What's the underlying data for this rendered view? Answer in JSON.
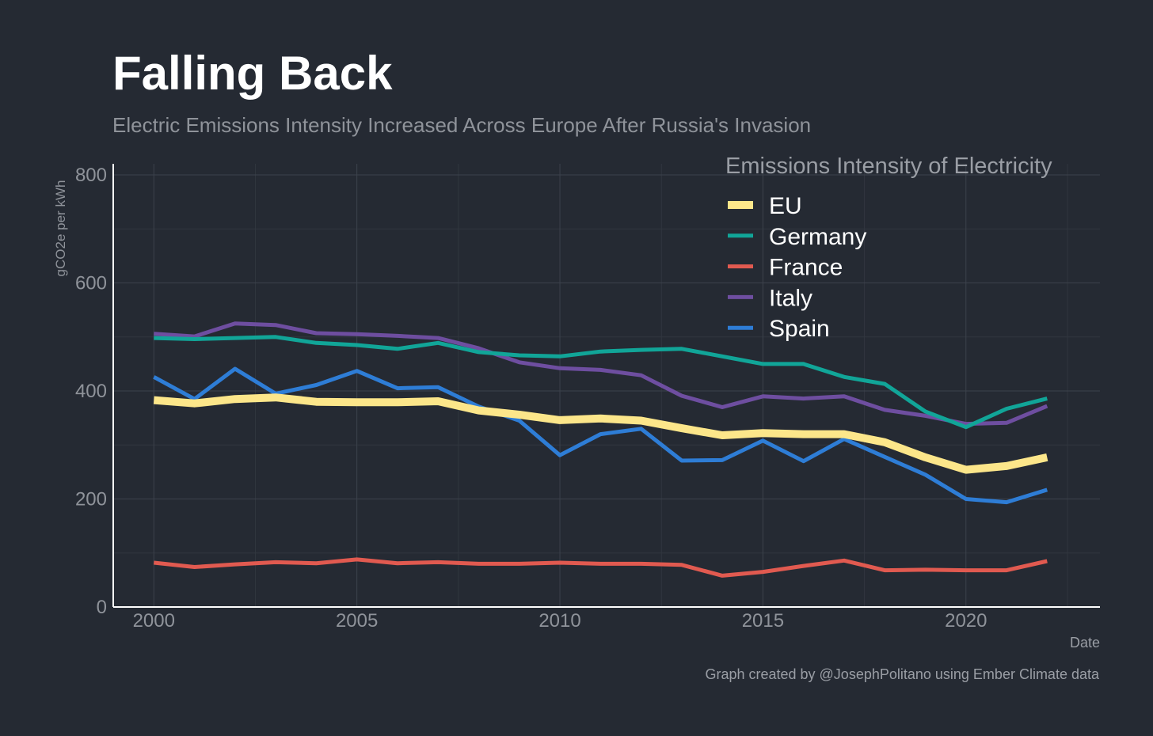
{
  "header": {
    "title": "Falling Back",
    "subtitle": "Electric Emissions Intensity Increased Across Europe After Russia's Invasion"
  },
  "caption": "Graph created by @JosephPolitano using Ember Climate data",
  "chart_data": {
    "type": "line",
    "title": "Falling Back",
    "subtitle": "Electric Emissions Intensity Increased Across Europe After Russia's Invasion",
    "xlabel": "Date",
    "ylabel": "gCO2e per kWh",
    "legend_title": "Emissions Intensity of Electricity",
    "legend_position": "top-right",
    "grid": true,
    "xlim": [
      1999,
      2023.3
    ],
    "ylim": [
      0,
      800
    ],
    "xticks": [
      2000,
      2005,
      2010,
      2015,
      2020
    ],
    "yticks": [
      0,
      200,
      400,
      600,
      800
    ],
    "x": [
      2000,
      2001,
      2002,
      2003,
      2004,
      2005,
      2006,
      2007,
      2008,
      2009,
      2010,
      2011,
      2012,
      2013,
      2014,
      2015,
      2016,
      2017,
      2018,
      2019,
      2020,
      2021,
      2022
    ],
    "series": [
      {
        "name": "EU",
        "color": "#fce68a",
        "values": [
          383,
          377,
          385,
          388,
          380,
          379,
          379,
          381,
          364,
          356,
          346,
          349,
          345,
          331,
          318,
          322,
          320,
          320,
          305,
          277,
          254,
          261,
          277
        ]
      },
      {
        "name": "Germany",
        "color": "#11a598",
        "values": [
          498,
          496,
          498,
          500,
          489,
          485,
          478,
          489,
          472,
          466,
          464,
          473,
          476,
          478,
          464,
          450,
          450,
          426,
          413,
          362,
          333,
          367,
          386
        ]
      },
      {
        "name": "France",
        "color": "#e15a50",
        "values": [
          82,
          74,
          79,
          83,
          81,
          88,
          81,
          83,
          80,
          80,
          82,
          80,
          80,
          78,
          58,
          65,
          76,
          86,
          68,
          69,
          68,
          68,
          85
        ]
      },
      {
        "name": "Italy",
        "color": "#6e4ea0",
        "values": [
          506,
          501,
          525,
          522,
          507,
          505,
          502,
          498,
          479,
          453,
          442,
          439,
          429,
          391,
          370,
          390,
          386,
          390,
          365,
          354,
          339,
          341,
          372
        ]
      },
      {
        "name": "Spain",
        "color": "#2e7dd6",
        "values": [
          426,
          385,
          441,
          395,
          411,
          437,
          405,
          407,
          371,
          345,
          281,
          320,
          330,
          271,
          272,
          308,
          270,
          311,
          278,
          245,
          200,
          194,
          217
        ]
      }
    ]
  }
}
